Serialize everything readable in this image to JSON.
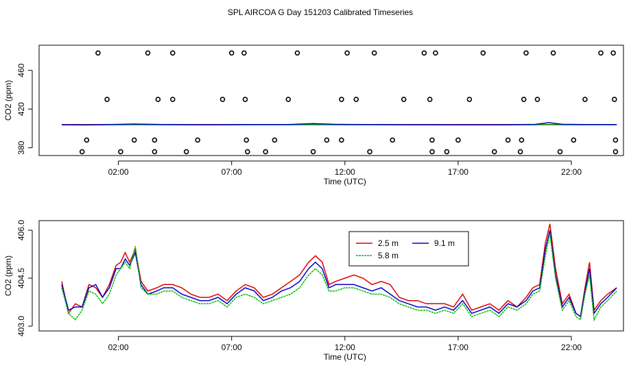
{
  "title": "SPL AIRCOA G  Day 151203  Calibrated Timeseries",
  "colors": {
    "s1": "#dd0000",
    "s2": "#00bb00",
    "s3": "#0000cc",
    "axis": "#000000"
  },
  "chart_data": [
    {
      "type": "scatter",
      "xlabel": "Time (UTC)",
      "ylabel": "CO2 (ppm)",
      "xlim": [
        -1.5,
        24.3
      ],
      "ylim": [
        372,
        486
      ],
      "x_ticks": [
        2,
        7,
        12,
        17,
        22
      ],
      "x_tick_labels": [
        "02:00",
        "07:00",
        "12:00",
        "17:00",
        "22:00"
      ],
      "y_ticks": [
        380,
        420,
        460
      ],
      "y_tick_labels": [
        "380",
        "420",
        "460"
      ],
      "calibration_points": {
        "x": [
          1.1,
          3.3,
          4.4,
          7.0,
          7.55,
          9.9,
          12.1,
          13.3,
          15.5,
          16.0,
          18.1,
          20.0,
          21.2,
          23.3,
          23.85,
          1.5,
          3.75,
          4.4,
          6.6,
          7.6,
          9.5,
          11.85,
          12.5,
          14.6,
          15.75,
          17.5,
          19.9,
          20.5,
          22.6,
          23.9,
          0.6,
          2.7,
          3.6,
          5.5,
          7.65,
          8.9,
          11.2,
          11.85,
          14.1,
          15.85,
          17.0,
          19.2,
          19.8,
          22.1,
          23.95,
          0.4,
          2.1,
          3.6,
          5.0,
          7.7,
          8.5,
          10.6,
          13.1,
          15.85,
          16.5,
          18.6,
          19.75,
          21.5,
          23.95
        ],
        "y": [
          478,
          478,
          478,
          478,
          478,
          478,
          478,
          478,
          478,
          478,
          478,
          478,
          478,
          478,
          478,
          430,
          430,
          430,
          430,
          430,
          430,
          430,
          430,
          430,
          430,
          430,
          430,
          430,
          430,
          430,
          388,
          388,
          388,
          388,
          388,
          388,
          388,
          388,
          388,
          388,
          388,
          388,
          388,
          388,
          388,
          376,
          376,
          376,
          376,
          376,
          376,
          376,
          376,
          376,
          376,
          376,
          376,
          376,
          376
        ]
      },
      "series": [
        {
          "name": "",
          "color": "#dd0000",
          "x": [
            -0.5,
            24
          ],
          "y": [
            404.0,
            404.0
          ]
        },
        {
          "name": "",
          "color": "#00bb00",
          "x": [
            -0.5,
            24
          ],
          "y": [
            403.8,
            403.8
          ]
        },
        {
          "name": "",
          "color": "#0000cc",
          "x": [
            -0.5,
            0.5,
            2.0,
            2.7,
            4.0,
            6.0,
            8.0,
            9.5,
            10.6,
            11.5,
            13.0,
            15.0,
            17.0,
            19.0,
            20.4,
            21.0,
            21.6,
            22.5,
            24.0
          ],
          "y": [
            403.8,
            403.6,
            404.2,
            404.6,
            404.0,
            403.8,
            404.0,
            404.0,
            405.0,
            404.3,
            404.0,
            403.8,
            403.7,
            403.7,
            404.2,
            406.0,
            404.3,
            404.0,
            404.0
          ]
        }
      ]
    },
    {
      "type": "line",
      "xlabel": "Time (UTC)",
      "ylabel": "CO2 (ppm)",
      "xlim": [
        -1.5,
        24.3
      ],
      "ylim": [
        402.85,
        406.3
      ],
      "x_ticks": [
        2,
        7,
        12,
        17,
        22
      ],
      "x_tick_labels": [
        "02:00",
        "07:00",
        "12:00",
        "17:00",
        "22:00"
      ],
      "y_ticks": [
        403.0,
        404.5,
        406.0
      ],
      "y_tick_labels": [
        "403.0",
        "404.5",
        "406.0"
      ],
      "legend": {
        "placement": "top-right",
        "entries": [
          "2.5 m",
          "5.8 m",
          "9.1 m"
        ]
      },
      "x": [
        -0.5,
        -0.2,
        0.1,
        0.4,
        0.7,
        1.0,
        1.3,
        1.6,
        1.9,
        2.1,
        2.3,
        2.5,
        2.75,
        3.0,
        3.3,
        3.7,
        4.0,
        4.4,
        4.8,
        5.2,
        5.6,
        6.0,
        6.4,
        6.8,
        7.2,
        7.6,
        8.0,
        8.4,
        8.8,
        9.2,
        9.6,
        10.0,
        10.4,
        10.7,
        11.0,
        11.3,
        11.6,
        12.0,
        12.4,
        12.8,
        13.2,
        13.6,
        14.0,
        14.4,
        14.8,
        15.2,
        15.6,
        16.0,
        16.4,
        16.8,
        17.2,
        17.6,
        18.0,
        18.4,
        18.8,
        19.2,
        19.6,
        20.0,
        20.3,
        20.6,
        20.85,
        21.05,
        21.3,
        21.6,
        21.9,
        22.2,
        22.4,
        22.6,
        22.8,
        23.0,
        23.3,
        23.6,
        24.0
      ],
      "series": [
        {
          "name": "2.5 m",
          "y": [
            404.4,
            403.4,
            403.7,
            403.6,
            404.3,
            404.2,
            403.9,
            404.3,
            404.9,
            405.0,
            405.3,
            405.0,
            405.4,
            404.4,
            404.1,
            404.2,
            404.3,
            404.3,
            404.2,
            404.0,
            403.9,
            403.9,
            404.0,
            403.8,
            404.1,
            404.3,
            404.2,
            403.9,
            404.0,
            404.2,
            404.4,
            404.6,
            405.0,
            405.2,
            405.0,
            404.3,
            404.4,
            404.5,
            404.6,
            404.5,
            404.3,
            404.4,
            404.3,
            403.9,
            403.8,
            403.8,
            403.7,
            403.7,
            403.7,
            403.6,
            404.0,
            403.5,
            403.6,
            403.7,
            403.5,
            403.8,
            403.6,
            403.9,
            404.2,
            404.3,
            405.6,
            406.2,
            404.8,
            403.7,
            404.0,
            403.4,
            403.3,
            404.2,
            405.0,
            403.5,
            403.8,
            404.0,
            404.2
          ]
        },
        {
          "name": "5.8 m",
          "y": [
            404.2,
            403.4,
            403.2,
            403.5,
            404.1,
            404.0,
            403.7,
            404.0,
            404.6,
            404.8,
            405.0,
            404.8,
            405.5,
            404.2,
            404.0,
            404.0,
            404.1,
            404.1,
            403.9,
            403.8,
            403.7,
            403.7,
            403.8,
            403.6,
            403.9,
            404.0,
            403.9,
            403.7,
            403.8,
            403.9,
            404.0,
            404.2,
            404.6,
            404.8,
            404.6,
            404.1,
            404.1,
            404.2,
            404.2,
            404.1,
            404.0,
            404.0,
            403.9,
            403.7,
            403.6,
            403.5,
            403.5,
            403.4,
            403.5,
            403.4,
            403.7,
            403.3,
            403.4,
            403.5,
            403.3,
            403.6,
            403.5,
            403.7,
            404.0,
            404.1,
            405.2,
            405.9,
            404.5,
            403.5,
            403.8,
            403.3,
            403.2,
            404.0,
            404.6,
            403.2,
            403.6,
            403.8,
            404.1
          ]
        },
        {
          "name": "9.1 m",
          "y": [
            404.3,
            403.5,
            403.6,
            403.6,
            404.2,
            404.3,
            403.9,
            404.2,
            404.8,
            404.8,
            405.1,
            404.9,
            405.3,
            404.3,
            404.0,
            404.1,
            404.2,
            404.2,
            404.0,
            403.9,
            403.8,
            403.8,
            403.9,
            403.7,
            404.0,
            404.2,
            404.1,
            403.8,
            403.9,
            404.1,
            404.2,
            404.4,
            404.8,
            405.0,
            404.8,
            404.2,
            404.3,
            404.3,
            404.3,
            404.2,
            404.1,
            404.2,
            404.0,
            403.8,
            403.7,
            403.6,
            403.6,
            403.5,
            403.6,
            403.5,
            403.8,
            403.4,
            403.5,
            403.6,
            403.4,
            403.7,
            403.6,
            403.8,
            404.1,
            404.2,
            405.4,
            406.0,
            404.6,
            403.6,
            403.9,
            403.4,
            403.3,
            404.1,
            404.8,
            403.4,
            403.7,
            403.9,
            404.2
          ]
        }
      ]
    }
  ]
}
